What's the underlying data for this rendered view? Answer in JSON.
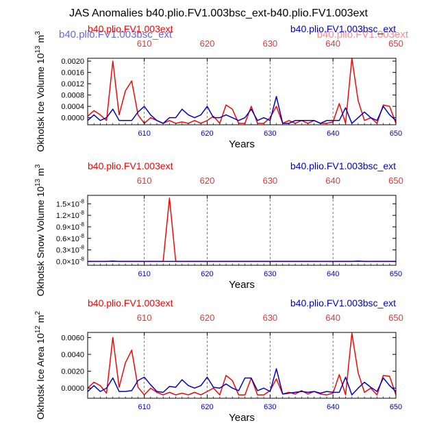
{
  "figure_title": "JAS Anomalies b40.plio.FV1.003bsc_ext-b40.plio.FV1.003ext",
  "ghost_labels": {
    "blue": "b40.plio.FV1.003bsc_ext",
    "red": "b40.plio.FV1.003ext"
  },
  "colors": {
    "red": "#ff0000",
    "blue": "#0000cc",
    "axis": "#000000",
    "grid": "#555555"
  },
  "chart_data": [
    {
      "type": "line",
      "panel": "ice-volume",
      "xlabel": "Years",
      "ylabel": "Okhotsk Ice Volume 10^13 m^3",
      "ylabel_main": "Okhotsk Ice Volume 10",
      "ylabel_exp": "13",
      "ylabel_unit": "m",
      "ylabel_unit_exp": "3",
      "xlim": [
        601,
        650
      ],
      "ylim": [
        -0.00025,
        0.0021
      ],
      "xticks": [
        610,
        620,
        630,
        640,
        650
      ],
      "xtick_labels": [
        "610",
        "620",
        "630",
        "640",
        "650"
      ],
      "yticks": [
        0.0,
        0.0004,
        0.0008,
        0.0012,
        0.0016,
        0.002
      ],
      "ytick_labels": [
        "0.0000",
        "0.0004",
        "0.0008",
        "0.0012",
        "0.0016",
        "0.0020"
      ],
      "top_left_label": "b40.plio.FV1.003ext",
      "top_right_label": "b40.plio.FV1.003bsc_ext",
      "series": [
        {
          "name": "b40.plio.FV1.003ext",
          "color": "red",
          "x": [
            601,
            602,
            603,
            604,
            605,
            606,
            607,
            608,
            609,
            610,
            611,
            612,
            613,
            614,
            615,
            616,
            617,
            618,
            619,
            620,
            621,
            622,
            623,
            624,
            625,
            626,
            627,
            628,
            629,
            630,
            631,
            632,
            633,
            634,
            635,
            636,
            637,
            638,
            639,
            640,
            641,
            642,
            643,
            644,
            645,
            646,
            647,
            648,
            649,
            650
          ],
          "values": [
            5e-05,
            0.00025,
            0.0001,
            -0.0001,
            0.002,
            0.0001,
            0.00095,
            0.0013,
            0.0001,
            -0.0002,
            0.0,
            -0.0001,
            -0.0002,
            -0.0001,
            -0.0002,
            -0.00015,
            -0.0002,
            -0.0001,
            -0.0002,
            -0.0001,
            5e-05,
            -0.0002,
            0.00045,
            0.0003,
            -0.0002,
            -0.0002,
            0.0004,
            -0.0002,
            -0.0002,
            0.0,
            0.0004,
            -0.0002,
            -0.0001,
            -0.0002,
            -0.0001,
            -0.0002,
            -0.0001,
            -0.0002,
            -0.0002,
            -0.00015,
            0.0005,
            -0.0002,
            0.0021,
            0.0006,
            -0.0001,
            0.0,
            -0.0002,
            0.00045,
            0.0004,
            -0.0002
          ]
        },
        {
          "name": "b40.plio.FV1.003bsc_ext",
          "color": "blue",
          "x": [
            601,
            602,
            603,
            604,
            605,
            606,
            607,
            608,
            609,
            610,
            611,
            612,
            613,
            614,
            615,
            616,
            617,
            618,
            619,
            620,
            621,
            622,
            623,
            624,
            625,
            626,
            627,
            628,
            629,
            630,
            631,
            632,
            633,
            634,
            635,
            636,
            637,
            638,
            639,
            640,
            641,
            642,
            643,
            644,
            645,
            646,
            647,
            648,
            649,
            650
          ],
          "values": [
            -0.0001,
            0.0001,
            -0.0001,
            0.0,
            0.0003,
            -0.0001,
            -0.0001,
            -0.0001,
            0.0002,
            0.0004,
            0.0001,
            -0.0001,
            -0.0002,
            0.0,
            0.0,
            0.0003,
            0.0001,
            0.0,
            0.0001,
            0.0004,
            0.0,
            0.0,
            0.0001,
            0.0,
            -0.0001,
            0.0,
            0.0003,
            -0.0001,
            0.0,
            -0.0001,
            0.00075,
            -0.0002,
            -0.0002,
            -0.0001,
            -0.0001,
            -0.0001,
            -0.0001,
            -0.0002,
            -0.0001,
            -0.0001,
            -0.0001,
            0.00035,
            -0.0002,
            0.0,
            0.0002,
            0.0,
            -0.0001,
            0.0004,
            0.0001,
            -0.0001
          ]
        }
      ]
    },
    {
      "type": "line",
      "panel": "snow-volume",
      "xlabel": "Years",
      "ylabel": "Okhotsk Snow Volume 10^13 m^3",
      "ylabel_main": "Okhotsk Snow Volume 10",
      "ylabel_exp": "13",
      "ylabel_unit": "m",
      "ylabel_unit_exp": "3",
      "xlim": [
        601,
        650
      ],
      "ylim": [
        -0.1,
        1.72
      ],
      "xticks": [
        610,
        620,
        630,
        640,
        650
      ],
      "xtick_labels": [
        "610",
        "620",
        "630",
        "640",
        "650"
      ],
      "yticks": [
        0.0,
        0.3,
        0.6,
        0.9,
        1.2,
        1.5
      ],
      "ytick_labels": [
        "0.0",
        "0.3",
        "0.6",
        "0.9",
        "1.2",
        "1.5"
      ],
      "ytick_suffix": "×10",
      "ytick_exponent": "-8",
      "top_left_label": "b40.plio.FV1.003ext",
      "top_right_label": "b40.plio.FV1.003bsc_ext",
      "series": [
        {
          "name": "b40.plio.FV1.003ext",
          "color": "red",
          "x": [
            601,
            605,
            610,
            613,
            614,
            615,
            620,
            630,
            640,
            645,
            650
          ],
          "values": [
            0.0,
            0.0,
            0.0,
            0.0,
            1.65,
            0.0,
            0.0,
            0.0,
            0.0,
            0.0,
            0.0
          ]
        },
        {
          "name": "b40.plio.FV1.003bsc_ext",
          "color": "blue",
          "x": [
            601,
            604,
            605,
            606,
            610,
            620,
            630,
            643,
            644,
            645,
            650
          ],
          "values": [
            0.0,
            0.0,
            0.01,
            0.0,
            0.0,
            0.0,
            0.0,
            0.0,
            0.01,
            0.0,
            0.0
          ]
        }
      ]
    },
    {
      "type": "line",
      "panel": "ice-area",
      "xlabel": "Years",
      "ylabel": "Okhotsk Ice Area 10^12 m^2",
      "ylabel_main": "Okhotsk Ice Area 10",
      "ylabel_exp": "12",
      "ylabel_unit": "m",
      "ylabel_unit_exp": "2",
      "xlim": [
        601,
        650
      ],
      "ylim": [
        -0.0012,
        0.0066
      ],
      "xticks": [
        610,
        620,
        630,
        640,
        650
      ],
      "xtick_labels": [
        "610",
        "620",
        "630",
        "640",
        "650"
      ],
      "yticks": [
        0.0,
        0.002,
        0.004,
        0.006
      ],
      "ytick_labels": [
        "0.0000",
        "0.0020",
        "0.0040",
        "0.0060"
      ],
      "top_left_label": "b40.plio.FV1.003ext",
      "top_right_label": "b40.plio.FV1.003bsc_ext",
      "series": [
        {
          "name": "b40.plio.FV1.003ext",
          "color": "red",
          "x": [
            601,
            602,
            603,
            604,
            605,
            606,
            607,
            608,
            609,
            610,
            611,
            612,
            613,
            614,
            615,
            616,
            617,
            618,
            619,
            620,
            621,
            622,
            623,
            624,
            625,
            626,
            627,
            628,
            629,
            630,
            631,
            632,
            633,
            634,
            635,
            636,
            637,
            638,
            639,
            640,
            641,
            642,
            643,
            644,
            645,
            646,
            647,
            648,
            649,
            650
          ],
          "values": [
            0.0,
            0.0007,
            0.0003,
            -0.0006,
            0.006,
            0.0001,
            0.003,
            0.0045,
            0.0001,
            -0.0008,
            0.0,
            -0.0005,
            -0.0008,
            -0.0005,
            -0.0008,
            -0.0006,
            -0.0008,
            -0.0005,
            -0.0008,
            -0.0004,
            0.0,
            -0.0008,
            0.0015,
            0.0009,
            -0.0008,
            -0.0008,
            0.0012,
            -0.0008,
            -0.0008,
            -0.0003,
            0.0011,
            -0.0007,
            -0.0005,
            -0.0007,
            -0.0003,
            -0.0007,
            -0.0004,
            -0.0007,
            -0.0008,
            -0.0006,
            0.0016,
            -0.0008,
            0.0065,
            0.0018,
            -0.0005,
            0.0,
            -0.0008,
            0.0015,
            0.0014,
            -0.0008
          ]
        },
        {
          "name": "b40.plio.FV1.003bsc_ext",
          "color": "blue",
          "x": [
            601,
            602,
            603,
            604,
            605,
            606,
            607,
            608,
            609,
            610,
            611,
            612,
            613,
            614,
            615,
            616,
            617,
            618,
            619,
            620,
            621,
            622,
            623,
            624,
            625,
            626,
            627,
            628,
            629,
            630,
            631,
            632,
            633,
            634,
            635,
            636,
            637,
            638,
            639,
            640,
            641,
            642,
            643,
            644,
            645,
            646,
            647,
            648,
            649,
            650
          ],
          "values": [
            -0.0004,
            0.0003,
            -0.0004,
            0.0,
            0.0012,
            -0.0004,
            -0.0004,
            -0.0003,
            0.0009,
            0.0013,
            0.0004,
            -0.0004,
            -0.0005,
            0.0002,
            0.0001,
            0.001,
            0.0003,
            0.0,
            0.0003,
            0.0013,
            0.0001,
            0.0,
            0.0005,
            0.0,
            -0.0003,
            0.0012,
            0.0012,
            -0.0003,
            0.0,
            -0.0004,
            0.0023,
            -0.0007,
            -0.0006,
            -0.0005,
            -0.0004,
            -0.0005,
            -0.0004,
            -0.0006,
            -0.0004,
            -0.0005,
            -0.0005,
            0.0013,
            -0.0008,
            0.0,
            0.0007,
            0.0001,
            -0.0004,
            0.0012,
            0.0003,
            -0.0004
          ]
        }
      ]
    }
  ]
}
